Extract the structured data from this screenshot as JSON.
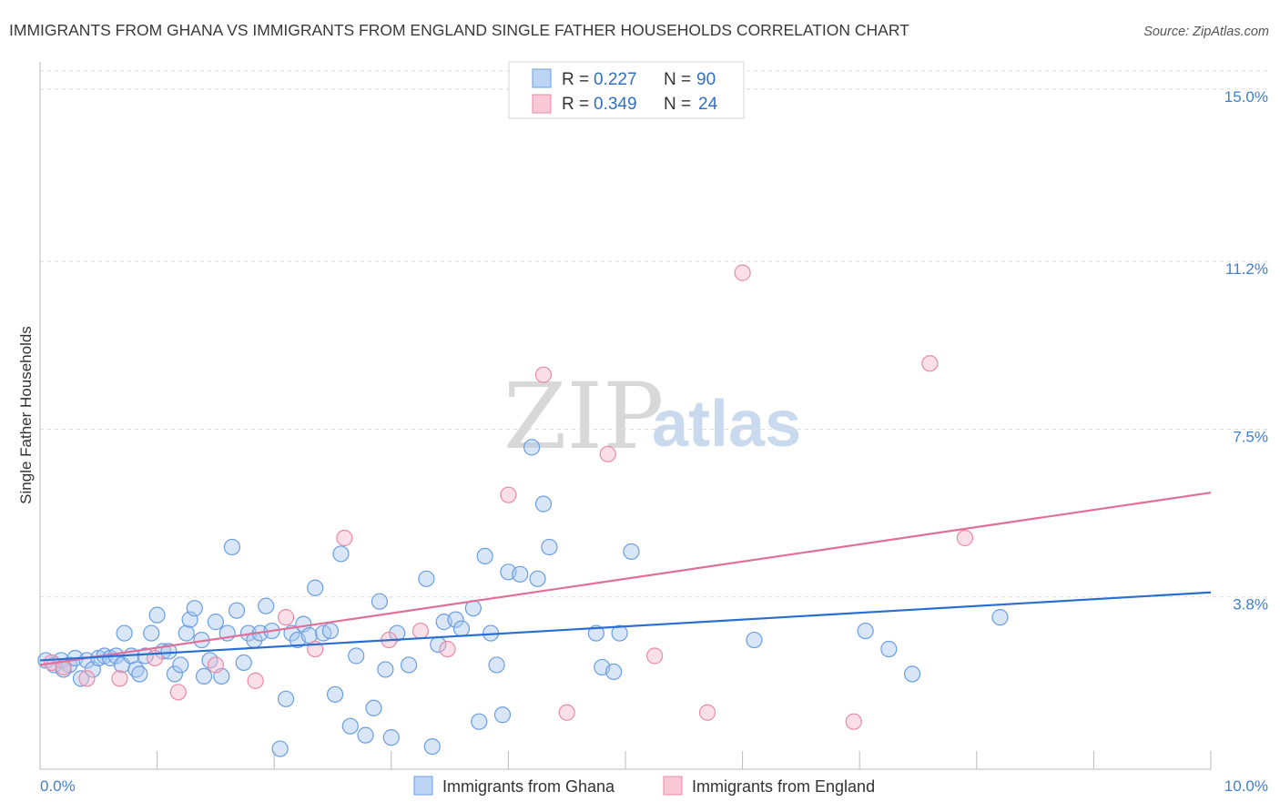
{
  "title": "IMMIGRANTS FROM GHANA VS IMMIGRANTS FROM ENGLAND SINGLE FATHER HOUSEHOLDS CORRELATION CHART",
  "source": "Source: ZipAtlas.com",
  "watermark": {
    "zip": "ZIP",
    "atlas": "atlas"
  },
  "colors": {
    "ghana_fill": "#a8c8f0",
    "ghana_stroke": "#6a9ee0",
    "ghana_line": "#2a6fd0",
    "england_fill": "#f5b8cb",
    "england_stroke": "#e88aa8",
    "england_line": "#e0709a",
    "grid": "#dcdcdc",
    "axis": "#bbbbbb"
  },
  "legend": {
    "rows": [
      {
        "r_label": "R =",
        "r_value": "0.227",
        "n_label": "N =",
        "n_value": "90"
      },
      {
        "r_label": "R =",
        "r_value": "0.349",
        "n_label": "N =",
        "n_value": "24"
      }
    ]
  },
  "chart_data": {
    "type": "scatter",
    "xlabel": "",
    "ylabel": "Single Father Households",
    "xlim": [
      0,
      10
    ],
    "ylim": [
      0,
      15.6
    ],
    "x_tick_labels": [
      {
        "value": 0,
        "label": "0.0%"
      },
      {
        "value": 10,
        "label": "10.0%"
      }
    ],
    "y_tick_labels": [
      {
        "value": 3.8,
        "label": "3.8%"
      },
      {
        "value": 7.5,
        "label": "7.5%"
      },
      {
        "value": 11.2,
        "label": "11.2%"
      },
      {
        "value": 15.0,
        "label": "15.0%"
      }
    ],
    "grid": true,
    "legend_position": "top-center",
    "series": [
      {
        "name": "Immigrants from Ghana",
        "trend": {
          "x": [
            0,
            10
          ],
          "y": [
            2.4,
            3.9
          ]
        },
        "points": [
          [
            0.05,
            2.4
          ],
          [
            0.12,
            2.3
          ],
          [
            0.18,
            2.4
          ],
          [
            0.25,
            2.3
          ],
          [
            0.3,
            2.45
          ],
          [
            0.35,
            2.0
          ],
          [
            0.4,
            2.4
          ],
          [
            0.45,
            2.2
          ],
          [
            0.5,
            2.45
          ],
          [
            0.55,
            2.5
          ],
          [
            0.6,
            2.45
          ],
          [
            0.65,
            2.5
          ],
          [
            0.7,
            2.3
          ],
          [
            0.72,
            3.0
          ],
          [
            0.78,
            2.5
          ],
          [
            0.82,
            2.2
          ],
          [
            0.85,
            2.1
          ],
          [
            0.9,
            2.5
          ],
          [
            0.95,
            3.0
          ],
          [
            1.0,
            3.4
          ],
          [
            1.05,
            2.6
          ],
          [
            1.1,
            2.6
          ],
          [
            1.15,
            2.1
          ],
          [
            1.2,
            2.3
          ],
          [
            1.25,
            3.0
          ],
          [
            1.28,
            3.3
          ],
          [
            1.32,
            3.55
          ],
          [
            1.38,
            2.85
          ],
          [
            1.4,
            2.05
          ],
          [
            1.45,
            2.4
          ],
          [
            1.5,
            3.25
          ],
          [
            1.55,
            2.05
          ],
          [
            1.6,
            3.0
          ],
          [
            1.64,
            4.9
          ],
          [
            1.68,
            3.5
          ],
          [
            1.74,
            2.35
          ],
          [
            1.78,
            3.0
          ],
          [
            1.83,
            2.85
          ],
          [
            1.88,
            3.0
          ],
          [
            1.93,
            3.6
          ],
          [
            1.98,
            3.05
          ],
          [
            2.05,
            0.45
          ],
          [
            2.1,
            1.55
          ],
          [
            2.15,
            3.0
          ],
          [
            2.2,
            2.85
          ],
          [
            2.25,
            3.2
          ],
          [
            2.3,
            2.95
          ],
          [
            2.35,
            4.0
          ],
          [
            2.42,
            3.0
          ],
          [
            2.48,
            3.05
          ],
          [
            2.52,
            1.65
          ],
          [
            2.57,
            4.75
          ],
          [
            2.65,
            0.95
          ],
          [
            2.7,
            2.5
          ],
          [
            2.78,
            0.75
          ],
          [
            2.85,
            1.35
          ],
          [
            2.9,
            3.7
          ],
          [
            2.95,
            2.2
          ],
          [
            3.0,
            0.7
          ],
          [
            3.05,
            3.0
          ],
          [
            3.15,
            2.3
          ],
          [
            3.3,
            4.2
          ],
          [
            3.35,
            0.5
          ],
          [
            3.4,
            2.75
          ],
          [
            3.45,
            3.25
          ],
          [
            3.55,
            3.3
          ],
          [
            3.6,
            3.1
          ],
          [
            3.7,
            3.55
          ],
          [
            3.75,
            1.05
          ],
          [
            3.8,
            4.7
          ],
          [
            3.85,
            3.0
          ],
          [
            3.9,
            2.3
          ],
          [
            3.95,
            1.2
          ],
          [
            4.0,
            4.35
          ],
          [
            4.1,
            4.3
          ],
          [
            4.2,
            7.1
          ],
          [
            4.25,
            4.2
          ],
          [
            4.3,
            5.85
          ],
          [
            4.35,
            4.9
          ],
          [
            4.75,
            3.0
          ],
          [
            4.8,
            2.25
          ],
          [
            4.9,
            2.15
          ],
          [
            4.95,
            3.0
          ],
          [
            5.05,
            4.8
          ],
          [
            6.1,
            2.85
          ],
          [
            7.05,
            3.05
          ],
          [
            7.25,
            2.65
          ],
          [
            7.45,
            2.1
          ],
          [
            8.2,
            3.35
          ],
          [
            0.2,
            2.2
          ]
        ]
      },
      {
        "name": "Immigrants from England",
        "trend": {
          "x": [
            0,
            10
          ],
          "y": [
            2.3,
            6.1
          ]
        },
        "points": [
          [
            0.1,
            2.35
          ],
          [
            0.2,
            2.25
          ],
          [
            0.4,
            2.0
          ],
          [
            0.68,
            2.0
          ],
          [
            0.98,
            2.45
          ],
          [
            1.18,
            1.7
          ],
          [
            1.5,
            2.3
          ],
          [
            1.84,
            1.95
          ],
          [
            2.1,
            3.35
          ],
          [
            2.35,
            2.65
          ],
          [
            2.6,
            5.1
          ],
          [
            2.98,
            2.85
          ],
          [
            3.25,
            3.05
          ],
          [
            3.48,
            2.65
          ],
          [
            4.0,
            6.05
          ],
          [
            4.3,
            8.7
          ],
          [
            4.5,
            1.25
          ],
          [
            4.85,
            6.95
          ],
          [
            5.25,
            2.5
          ],
          [
            5.7,
            1.25
          ],
          [
            6.0,
            10.95
          ],
          [
            6.95,
            1.05
          ],
          [
            7.6,
            8.95
          ],
          [
            7.9,
            5.1
          ]
        ]
      }
    ]
  },
  "bottom_legend": [
    {
      "label": "Immigrants from Ghana"
    },
    {
      "label": "Immigrants from England"
    }
  ]
}
